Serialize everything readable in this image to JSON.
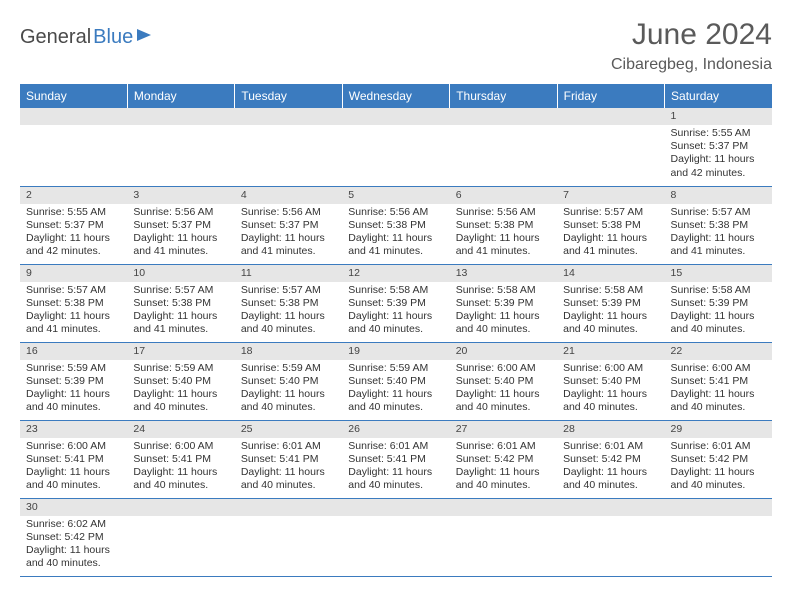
{
  "logo": {
    "part1": "General",
    "part2": "Blue"
  },
  "title": "June 2024",
  "location": "Cibaregbeg, Indonesia",
  "colors": {
    "header_bg": "#3b7bbf",
    "header_text": "#ffffff",
    "daynum_bg": "#e6e6e6",
    "border": "#3b7bbf",
    "text": "#333333",
    "title_text": "#5a5a5a"
  },
  "weekdays": [
    "Sunday",
    "Monday",
    "Tuesday",
    "Wednesday",
    "Thursday",
    "Friday",
    "Saturday"
  ],
  "weeks": [
    [
      null,
      null,
      null,
      null,
      null,
      null,
      {
        "n": "1",
        "sr": "Sunrise: 5:55 AM",
        "ss": "Sunset: 5:37 PM",
        "d1": "Daylight: 11 hours",
        "d2": "and 42 minutes."
      }
    ],
    [
      {
        "n": "2",
        "sr": "Sunrise: 5:55 AM",
        "ss": "Sunset: 5:37 PM",
        "d1": "Daylight: 11 hours",
        "d2": "and 42 minutes."
      },
      {
        "n": "3",
        "sr": "Sunrise: 5:56 AM",
        "ss": "Sunset: 5:37 PM",
        "d1": "Daylight: 11 hours",
        "d2": "and 41 minutes."
      },
      {
        "n": "4",
        "sr": "Sunrise: 5:56 AM",
        "ss": "Sunset: 5:37 PM",
        "d1": "Daylight: 11 hours",
        "d2": "and 41 minutes."
      },
      {
        "n": "5",
        "sr": "Sunrise: 5:56 AM",
        "ss": "Sunset: 5:38 PM",
        "d1": "Daylight: 11 hours",
        "d2": "and 41 minutes."
      },
      {
        "n": "6",
        "sr": "Sunrise: 5:56 AM",
        "ss": "Sunset: 5:38 PM",
        "d1": "Daylight: 11 hours",
        "d2": "and 41 minutes."
      },
      {
        "n": "7",
        "sr": "Sunrise: 5:57 AM",
        "ss": "Sunset: 5:38 PM",
        "d1": "Daylight: 11 hours",
        "d2": "and 41 minutes."
      },
      {
        "n": "8",
        "sr": "Sunrise: 5:57 AM",
        "ss": "Sunset: 5:38 PM",
        "d1": "Daylight: 11 hours",
        "d2": "and 41 minutes."
      }
    ],
    [
      {
        "n": "9",
        "sr": "Sunrise: 5:57 AM",
        "ss": "Sunset: 5:38 PM",
        "d1": "Daylight: 11 hours",
        "d2": "and 41 minutes."
      },
      {
        "n": "10",
        "sr": "Sunrise: 5:57 AM",
        "ss": "Sunset: 5:38 PM",
        "d1": "Daylight: 11 hours",
        "d2": "and 41 minutes."
      },
      {
        "n": "11",
        "sr": "Sunrise: 5:57 AM",
        "ss": "Sunset: 5:38 PM",
        "d1": "Daylight: 11 hours",
        "d2": "and 40 minutes."
      },
      {
        "n": "12",
        "sr": "Sunrise: 5:58 AM",
        "ss": "Sunset: 5:39 PM",
        "d1": "Daylight: 11 hours",
        "d2": "and 40 minutes."
      },
      {
        "n": "13",
        "sr": "Sunrise: 5:58 AM",
        "ss": "Sunset: 5:39 PM",
        "d1": "Daylight: 11 hours",
        "d2": "and 40 minutes."
      },
      {
        "n": "14",
        "sr": "Sunrise: 5:58 AM",
        "ss": "Sunset: 5:39 PM",
        "d1": "Daylight: 11 hours",
        "d2": "and 40 minutes."
      },
      {
        "n": "15",
        "sr": "Sunrise: 5:58 AM",
        "ss": "Sunset: 5:39 PM",
        "d1": "Daylight: 11 hours",
        "d2": "and 40 minutes."
      }
    ],
    [
      {
        "n": "16",
        "sr": "Sunrise: 5:59 AM",
        "ss": "Sunset: 5:39 PM",
        "d1": "Daylight: 11 hours",
        "d2": "and 40 minutes."
      },
      {
        "n": "17",
        "sr": "Sunrise: 5:59 AM",
        "ss": "Sunset: 5:40 PM",
        "d1": "Daylight: 11 hours",
        "d2": "and 40 minutes."
      },
      {
        "n": "18",
        "sr": "Sunrise: 5:59 AM",
        "ss": "Sunset: 5:40 PM",
        "d1": "Daylight: 11 hours",
        "d2": "and 40 minutes."
      },
      {
        "n": "19",
        "sr": "Sunrise: 5:59 AM",
        "ss": "Sunset: 5:40 PM",
        "d1": "Daylight: 11 hours",
        "d2": "and 40 minutes."
      },
      {
        "n": "20",
        "sr": "Sunrise: 6:00 AM",
        "ss": "Sunset: 5:40 PM",
        "d1": "Daylight: 11 hours",
        "d2": "and 40 minutes."
      },
      {
        "n": "21",
        "sr": "Sunrise: 6:00 AM",
        "ss": "Sunset: 5:40 PM",
        "d1": "Daylight: 11 hours",
        "d2": "and 40 minutes."
      },
      {
        "n": "22",
        "sr": "Sunrise: 6:00 AM",
        "ss": "Sunset: 5:41 PM",
        "d1": "Daylight: 11 hours",
        "d2": "and 40 minutes."
      }
    ],
    [
      {
        "n": "23",
        "sr": "Sunrise: 6:00 AM",
        "ss": "Sunset: 5:41 PM",
        "d1": "Daylight: 11 hours",
        "d2": "and 40 minutes."
      },
      {
        "n": "24",
        "sr": "Sunrise: 6:00 AM",
        "ss": "Sunset: 5:41 PM",
        "d1": "Daylight: 11 hours",
        "d2": "and 40 minutes."
      },
      {
        "n": "25",
        "sr": "Sunrise: 6:01 AM",
        "ss": "Sunset: 5:41 PM",
        "d1": "Daylight: 11 hours",
        "d2": "and 40 minutes."
      },
      {
        "n": "26",
        "sr": "Sunrise: 6:01 AM",
        "ss": "Sunset: 5:41 PM",
        "d1": "Daylight: 11 hours",
        "d2": "and 40 minutes."
      },
      {
        "n": "27",
        "sr": "Sunrise: 6:01 AM",
        "ss": "Sunset: 5:42 PM",
        "d1": "Daylight: 11 hours",
        "d2": "and 40 minutes."
      },
      {
        "n": "28",
        "sr": "Sunrise: 6:01 AM",
        "ss": "Sunset: 5:42 PM",
        "d1": "Daylight: 11 hours",
        "d2": "and 40 minutes."
      },
      {
        "n": "29",
        "sr": "Sunrise: 6:01 AM",
        "ss": "Sunset: 5:42 PM",
        "d1": "Daylight: 11 hours",
        "d2": "and 40 minutes."
      }
    ],
    [
      {
        "n": "30",
        "sr": "Sunrise: 6:02 AM",
        "ss": "Sunset: 5:42 PM",
        "d1": "Daylight: 11 hours",
        "d2": "and 40 minutes."
      },
      null,
      null,
      null,
      null,
      null,
      null
    ]
  ]
}
